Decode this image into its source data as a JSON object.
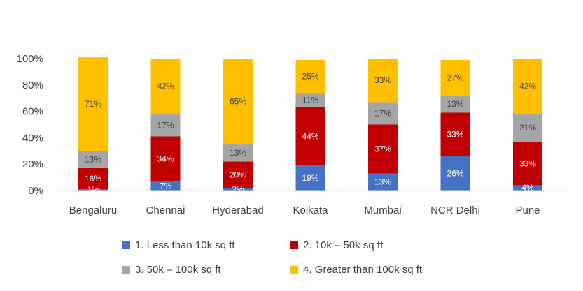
{
  "chart_data": {
    "type": "bar",
    "stacked": true,
    "percent": true,
    "categories": [
      "Bengaluru",
      "Chennai",
      "Hyderabad",
      "Kolkata",
      "Mumbai",
      "NCR Delhi",
      "Pune"
    ],
    "series": [
      {
        "name": "1. Less than 10k sq ft",
        "color": "#4472C4",
        "values": [
          1,
          7,
          2,
          19,
          13,
          26,
          4
        ],
        "labels": [
          "1%",
          "7%",
          "2%",
          "19%",
          "13%",
          "26%",
          "4%"
        ]
      },
      {
        "name": "2. 10k – 50k sq ft",
        "color": "#C00000",
        "values": [
          16,
          34,
          20,
          44,
          37,
          33,
          33
        ],
        "labels": [
          "16%",
          "34%",
          "20%",
          "44%",
          "37%",
          "33%",
          "33%"
        ]
      },
      {
        "name": "3. 50k – 100k sq ft",
        "color": "#A5A5A5",
        "values": [
          13,
          17,
          13,
          11,
          17,
          13,
          21
        ],
        "labels": [
          "13%",
          "17%",
          "13%",
          "11%",
          "17%",
          "13%",
          "21%"
        ]
      },
      {
        "name": "4. Greater than 100k sq ft",
        "color": "#FFC000",
        "values": [
          71,
          42,
          65,
          25,
          33,
          27,
          42
        ],
        "labels": [
          "71%",
          "42%",
          "65%",
          "25%",
          "33%",
          "27%",
          "42%"
        ]
      }
    ],
    "yticks": [
      "0%",
      "20%",
      "40%",
      "60%",
      "80%",
      "100%"
    ],
    "ylim": [
      0,
      100
    ],
    "legend_position": "bottom",
    "grid": false
  }
}
